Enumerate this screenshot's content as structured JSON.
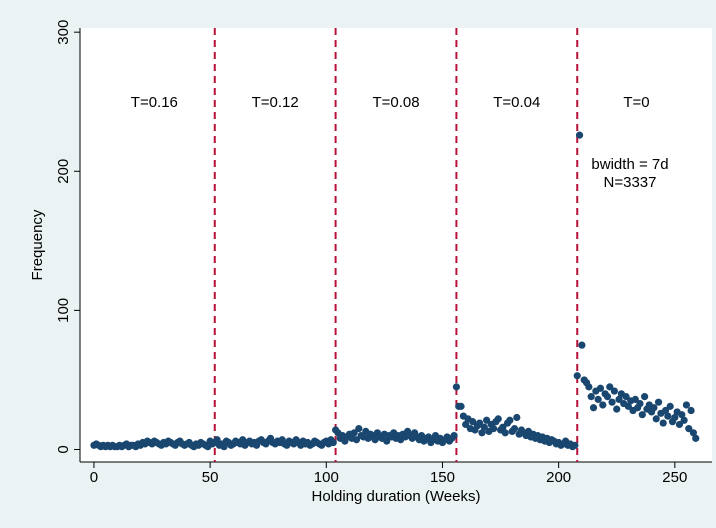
{
  "chart_data": {
    "type": "scatter",
    "x_label": "Holding duration (Weeks)",
    "y_label": "Frequency",
    "xlim": [
      -6,
      266
    ],
    "ylim": [
      -9,
      303
    ],
    "xticks": [
      0,
      50,
      100,
      150,
      200,
      250
    ],
    "yticks": [
      0,
      100,
      200,
      300
    ],
    "vlines": [
      52,
      104,
      156,
      208
    ],
    "vline_color": "#b5133a",
    "segment_labels": [
      "T=0.16",
      "T=0.12",
      "T=0.08",
      "T=0.04",
      "T=0"
    ],
    "annotations": [
      "bwidth = 7d",
      "N=3337"
    ],
    "color": "#1a476f",
    "x": [
      0,
      1,
      2,
      3,
      4,
      5,
      6,
      7,
      8,
      9,
      10,
      11,
      12,
      13,
      14,
      15,
      16,
      17,
      18,
      19,
      20,
      21,
      22,
      23,
      24,
      25,
      26,
      27,
      28,
      29,
      30,
      31,
      32,
      33,
      34,
      35,
      36,
      37,
      38,
      39,
      40,
      41,
      42,
      43,
      44,
      45,
      46,
      47,
      48,
      49,
      50,
      51,
      52,
      53,
      54,
      55,
      56,
      57,
      58,
      59,
      60,
      61,
      62,
      63,
      64,
      65,
      66,
      67,
      68,
      69,
      70,
      71,
      72,
      73,
      74,
      75,
      76,
      77,
      78,
      79,
      80,
      81,
      82,
      83,
      84,
      85,
      86,
      87,
      88,
      89,
      90,
      91,
      92,
      93,
      94,
      95,
      96,
      97,
      98,
      99,
      100,
      101,
      102,
      103,
      104,
      105,
      106,
      107,
      108,
      109,
      110,
      111,
      112,
      113,
      114,
      115,
      116,
      117,
      118,
      119,
      120,
      121,
      122,
      123,
      124,
      125,
      126,
      127,
      128,
      129,
      130,
      131,
      132,
      133,
      134,
      135,
      136,
      137,
      138,
      139,
      140,
      141,
      142,
      143,
      144,
      145,
      146,
      147,
      148,
      149,
      150,
      151,
      152,
      153,
      154,
      155,
      156,
      157,
      158,
      159,
      160,
      161,
      162,
      163,
      164,
      165,
      166,
      167,
      168,
      169,
      170,
      171,
      172,
      173,
      174,
      175,
      176,
      177,
      178,
      179,
      180,
      181,
      182,
      183,
      184,
      185,
      186,
      187,
      188,
      189,
      190,
      191,
      192,
      193,
      194,
      195,
      196,
      197,
      198,
      199,
      200,
      201,
      202,
      203,
      204,
      205,
      206,
      207,
      208,
      209,
      210,
      211,
      212,
      213,
      214,
      215,
      216,
      217,
      218,
      219,
      220,
      221,
      222,
      223,
      224,
      225,
      226,
      227,
      228,
      229,
      230,
      231,
      232,
      233,
      234,
      235,
      236,
      237,
      238,
      239,
      240,
      241,
      242,
      243,
      244,
      245,
      246,
      247,
      248,
      249,
      250,
      251,
      252,
      253,
      254,
      255,
      256,
      257,
      258,
      259
    ],
    "values": [
      3,
      4,
      3,
      2,
      3,
      2,
      3,
      2,
      3,
      2,
      2,
      3,
      2,
      3,
      4,
      2,
      3,
      3,
      2,
      4,
      3,
      5,
      4,
      6,
      5,
      4,
      6,
      5,
      4,
      3,
      5,
      4,
      6,
      5,
      4,
      3,
      5,
      6,
      4,
      3,
      4,
      5,
      3,
      2,
      4,
      3,
      5,
      4,
      3,
      2,
      6,
      4,
      5,
      7,
      3,
      4,
      2,
      6,
      5,
      3,
      4,
      6,
      5,
      4,
      7,
      3,
      5,
      6,
      4,
      5,
      3,
      6,
      7,
      5,
      4,
      6,
      8,
      5,
      4,
      6,
      5,
      7,
      4,
      3,
      6,
      5,
      4,
      7,
      5,
      3,
      6,
      4,
      5,
      3,
      4,
      6,
      5,
      4,
      3,
      5,
      6,
      4,
      7,
      5,
      14,
      12,
      8,
      10,
      6,
      9,
      11,
      8,
      12,
      7,
      15,
      10,
      9,
      13,
      8,
      11,
      10,
      7,
      12,
      9,
      8,
      11,
      6,
      10,
      9,
      12,
      8,
      10,
      7,
      11,
      9,
      13,
      10,
      8,
      12,
      9,
      7,
      10,
      6,
      8,
      9,
      5,
      7,
      10,
      6,
      8,
      5,
      7,
      9,
      6,
      8,
      10,
      45,
      31,
      31,
      24,
      18,
      22,
      15,
      20,
      14,
      17,
      19,
      12,
      16,
      21,
      13,
      18,
      15,
      20,
      22,
      14,
      16,
      12,
      19,
      21,
      13,
      15,
      23,
      11,
      14,
      12,
      10,
      13,
      9,
      11,
      8,
      10,
      7,
      9,
      6,
      8,
      5,
      7,
      6,
      4,
      5,
      3,
      4,
      6,
      3,
      4,
      2,
      3,
      53,
      226,
      75,
      50,
      48,
      45,
      38,
      30,
      42,
      36,
      44,
      32,
      40,
      38,
      45,
      34,
      42,
      29,
      36,
      40,
      33,
      38,
      31,
      35,
      28,
      36,
      30,
      33,
      25,
      38,
      29,
      32,
      27,
      30,
      22,
      34,
      26,
      19,
      28,
      24,
      31,
      20,
      23,
      27,
      18,
      25,
      21,
      32,
      15,
      28,
      12,
      8
    ]
  }
}
